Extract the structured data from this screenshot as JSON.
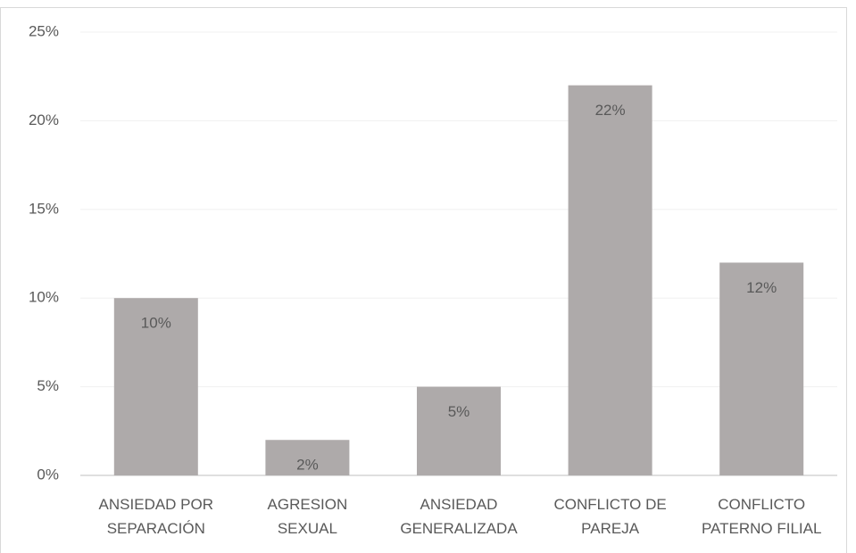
{
  "chart_data": {
    "type": "bar",
    "categories": [
      "ANSIEDAD POR\nSEPARACIÓN",
      "AGRESION\nSEXUAL",
      "ANSIEDAD\nGENERALIZADA",
      "CONFLICTO DE\nPAREJA",
      "CONFLICTO\nPATERNO FILIAL"
    ],
    "values": [
      10,
      2,
      5,
      22,
      12
    ],
    "value_labels": [
      "10%",
      "2%",
      "5%",
      "22%",
      "12%"
    ],
    "color": "#aeaaaa",
    "ylim": [
      0,
      25
    ],
    "yticks": [
      {
        "value": 0,
        "label": "0%"
      },
      {
        "value": 5,
        "label": "5%"
      },
      {
        "value": 10,
        "label": "10%"
      },
      {
        "value": 15,
        "label": "15%"
      },
      {
        "value": 20,
        "label": "20%"
      },
      {
        "value": 25,
        "label": "25%"
      }
    ],
    "grid": true
  }
}
